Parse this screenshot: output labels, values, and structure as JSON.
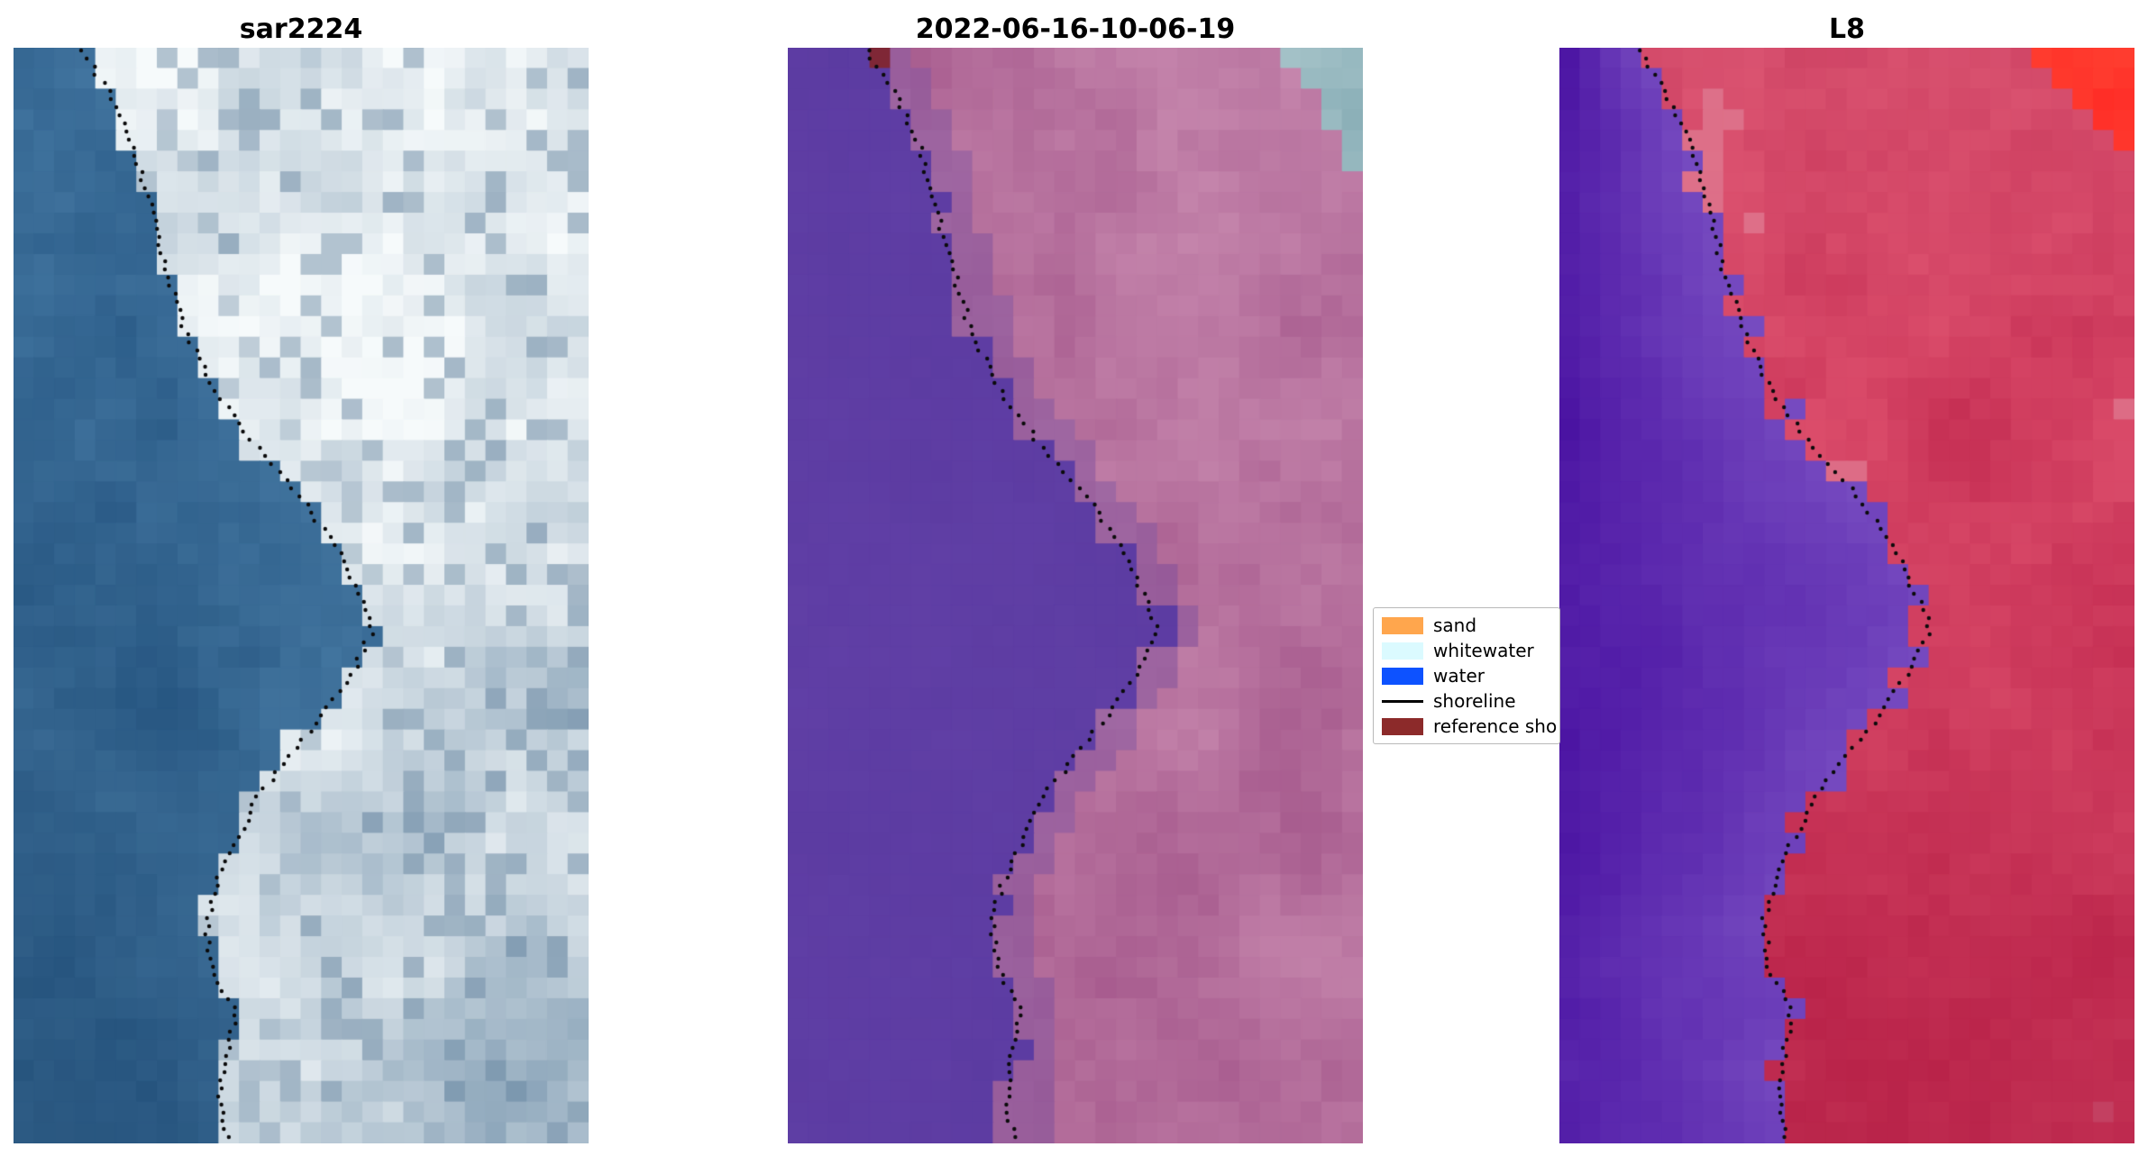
{
  "figure": {
    "background": "#ffffff",
    "panels": [
      {
        "title": "sar2224"
      },
      {
        "title": "2022-06-16-10-06-19"
      },
      {
        "title": "L8"
      }
    ],
    "legend": {
      "entries": [
        {
          "label": "sand",
          "color": "#ffa64d",
          "type": "patch"
        },
        {
          "label": "whitewater",
          "color": "#dbfaff",
          "type": "patch"
        },
        {
          "label": "water",
          "color": "#0d52ff",
          "type": "patch"
        },
        {
          "label": "shoreline",
          "color": "#000000",
          "type": "line"
        },
        {
          "label": "reference sho",
          "color": "#8c2a2a",
          "type": "patch"
        }
      ]
    }
  },
  "chart_data": {
    "type": "image-panels",
    "description": "Three coastal satellite image chips of the same shoreline with a detected shoreline overlaid as a black dotted line; middle panel is a classified image, right panel is Landsat 8 false color.",
    "layout": {
      "grid": [
        28,
        53
      ],
      "panel_size_px": [
        638,
        1216
      ],
      "legend_position": "between panel 2 and 3, vertically centered"
    },
    "shoreline_path": [
      [
        0.0,
        0.115
      ],
      [
        0.04,
        0.165
      ],
      [
        0.09,
        0.21
      ],
      [
        0.14,
        0.235
      ],
      [
        0.2,
        0.265
      ],
      [
        0.26,
        0.3
      ],
      [
        0.31,
        0.345
      ],
      [
        0.36,
        0.415
      ],
      [
        0.41,
        0.5
      ],
      [
        0.46,
        0.565
      ],
      [
        0.5,
        0.6
      ],
      [
        0.53,
        0.625
      ],
      [
        0.56,
        0.6
      ],
      [
        0.6,
        0.55
      ],
      [
        0.64,
        0.49
      ],
      [
        0.68,
        0.43
      ],
      [
        0.72,
        0.39
      ],
      [
        0.76,
        0.355
      ],
      [
        0.8,
        0.335
      ],
      [
        0.84,
        0.345
      ],
      [
        0.88,
        0.385
      ],
      [
        0.92,
        0.37
      ],
      [
        0.96,
        0.36
      ],
      [
        1.0,
        0.375
      ]
    ],
    "panels": [
      {
        "title": "sar2224",
        "style": "sar",
        "shore_offset": 0.0,
        "palette": {
          "water_dark": "#20507d",
          "water_light": "#4a7ea8",
          "water_deep": "#173f66",
          "land_base": "#89a3b8",
          "land_white": "#f6fafb",
          "land_shadow": "#5f7f9b"
        }
      },
      {
        "title": "2022-06-16-10-06-19",
        "style": "class",
        "shore_offset": 0.02,
        "spike": {
          "t0": 0.517,
          "t1": 0.546,
          "extend": 0.055
        },
        "red_patch": {
          "t0": 0.004,
          "t1": 0.035,
          "u0": 0.1,
          "u1": 0.18
        },
        "palette": {
          "water": "#5a3aa0",
          "water2": "#6644ab",
          "land1": "#a3568a",
          "land2": "#c98bb0",
          "land_purple": "#7a4f9f",
          "teal1": "#6f9aa6",
          "teal2": "#a9c6cb",
          "ref_red": "#7c2430"
        }
      },
      {
        "title": "L8",
        "style": "l8",
        "shore_offset": 0.02,
        "palette": {
          "water_dark": "#470fa0",
          "water_light": "#7c52c4",
          "land1": "#c22a50",
          "land2": "#e25672",
          "land_pink": "#de8ba0",
          "land_deep": "#a50f38",
          "corner1": "#ff4a36",
          "corner2": "#ff2020"
        }
      }
    ],
    "legend": {
      "entries": [
        {
          "label": "sand",
          "color": "#ffa64d",
          "type": "patch"
        },
        {
          "label": "whitewater",
          "color": "#dbfaff",
          "type": "patch"
        },
        {
          "label": "water",
          "color": "#0d52ff",
          "type": "patch"
        },
        {
          "label": "shoreline",
          "color": "#000000",
          "type": "line"
        },
        {
          "label": "reference sho",
          "color": "#8c2a2a",
          "type": "patch"
        }
      ]
    }
  }
}
